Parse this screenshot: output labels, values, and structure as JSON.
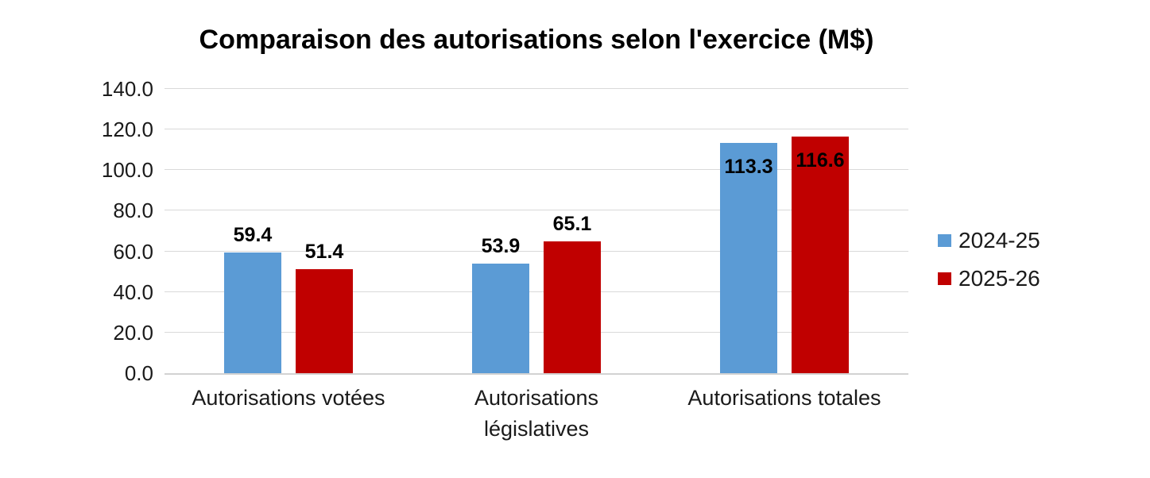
{
  "chart_data": {
    "type": "bar",
    "title": "Comparaison des autorisations selon l'exercice (M$)",
    "categories": [
      "Autorisations votées",
      "Autorisations\nlégislatives",
      "Autorisations totales"
    ],
    "series": [
      {
        "name": "2024-25",
        "color": "#5B9BD5",
        "values": [
          59.4,
          53.9,
          113.3
        ],
        "label_placement": [
          "above",
          "above",
          "inside"
        ]
      },
      {
        "name": "2025-26",
        "color": "#C00000",
        "values": [
          51.4,
          65.1,
          116.6
        ],
        "label_placement": [
          "above",
          "above",
          "inside"
        ]
      }
    ],
    "xlabel": "",
    "ylabel": "",
    "ylim": [
      0,
      140
    ],
    "ytick_step": 20,
    "ytick_format": "one-decimal",
    "grid": "horizontal-only",
    "gridline_color": "#D9D9D9",
    "axis_line_color": "#D2D2D2",
    "data_label_color": "#000000",
    "legend_position": "right"
  }
}
